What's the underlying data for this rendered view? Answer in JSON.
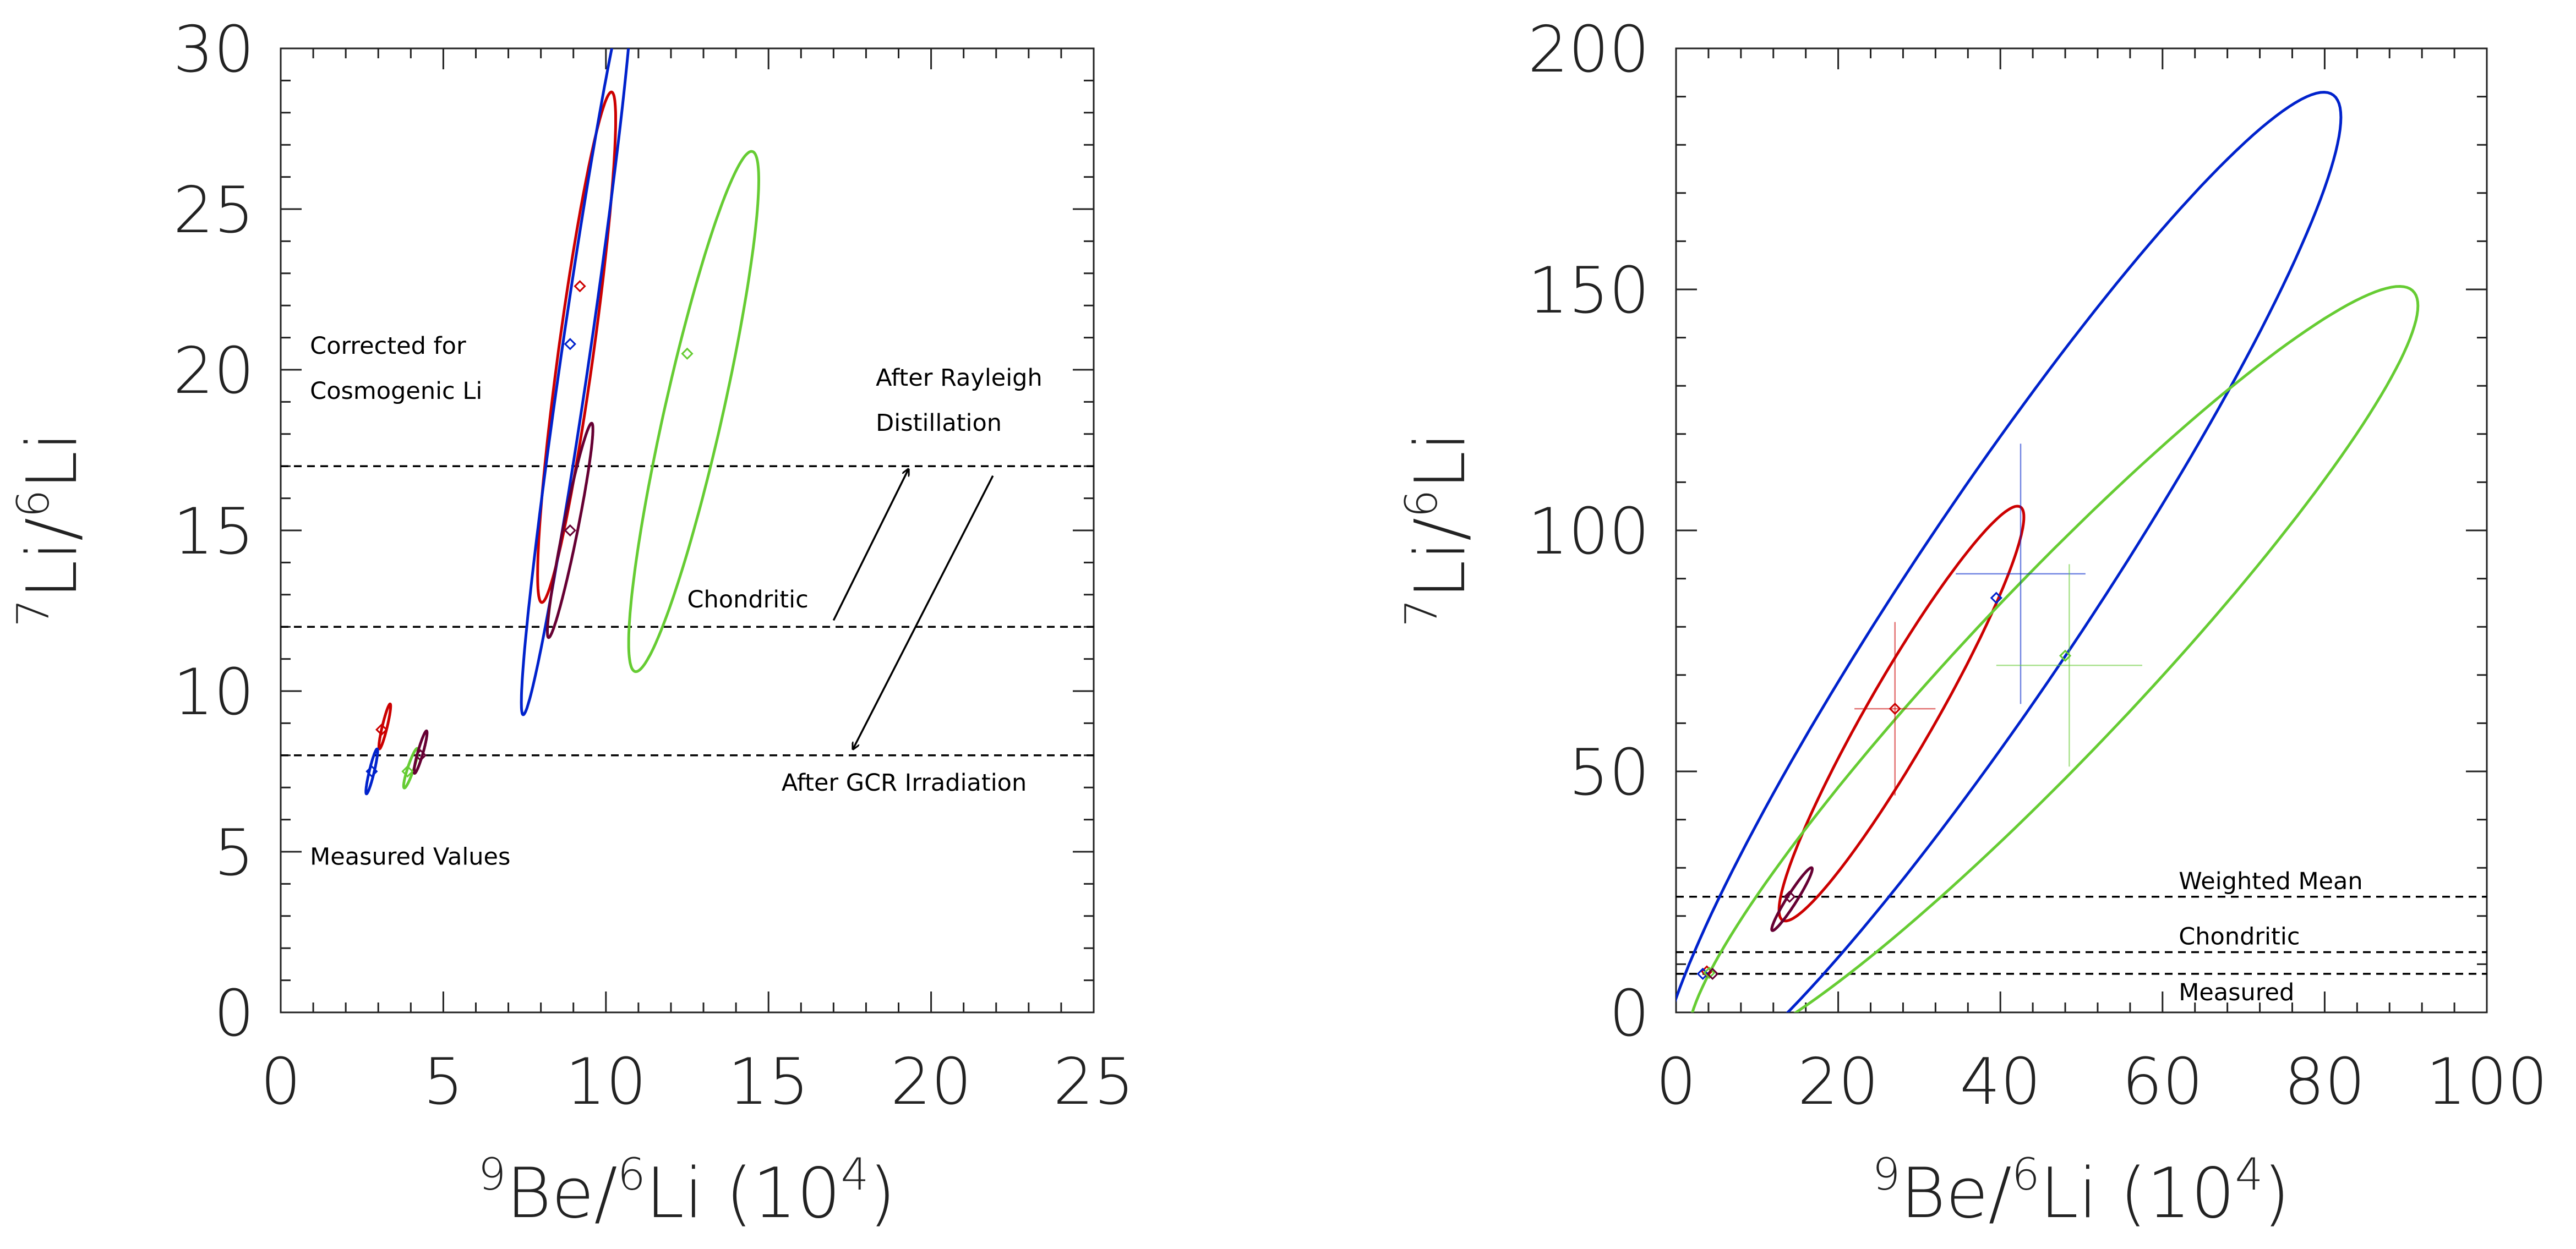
{
  "chart_data": [
    {
      "type": "scatter",
      "panel": "left",
      "xlabel": {
        "sup": "9",
        "main": "Be/",
        "sup2": "6",
        "main2": "Li (10",
        "sup3": "4",
        "main3": ")"
      },
      "ylabel": {
        "sup": "7",
        "main": "Li/",
        "sup2": "6",
        "main2": "Li"
      },
      "xlim": [
        0,
        25
      ],
      "ylim": [
        0,
        30
      ],
      "xticks": [
        0,
        5,
        10,
        15,
        20,
        25
      ],
      "yticks": [
        0,
        5,
        10,
        15,
        20,
        25,
        30
      ],
      "xminor": 1,
      "yminor": 1,
      "hlines": [
        {
          "y": 17,
          "style": "dashed"
        },
        {
          "y": 12,
          "style": "dashed"
        },
        {
          "y": 8,
          "style": "dashed"
        }
      ],
      "series": [
        {
          "color": "#cc0000",
          "points": [
            {
              "x": 3.1,
              "y": 8.8
            },
            {
              "x": 9.2,
              "y": 22.6
            }
          ],
          "ellipses": [
            {
              "cx": 3.2,
              "cy": 8.9,
              "x_extent": 0.18,
              "y_extent": 0.6,
              "slope": 3.5
            },
            {
              "cx": 9.1,
              "cy": 20.7,
              "x_extent": 1.2,
              "y_extent": 7.2,
              "slope": 5.9
            }
          ]
        },
        {
          "color": "#0022cc",
          "points": [
            {
              "x": 2.8,
              "y": 7.5
            },
            {
              "x": 8.9,
              "y": 20.8
            }
          ],
          "ellipses": [
            {
              "cx": 2.8,
              "cy": 7.5,
              "x_extent": 0.18,
              "y_extent": 0.6,
              "slope": 3.5
            },
            {
              "cx": 9.1,
              "cy": 20.7,
              "x_extent": 1.7,
              "y_extent": 5.9,
              "slope": 6.5
            }
          ]
        },
        {
          "color": "#66cc33",
          "points": [
            {
              "x": 12.5,
              "y": 20.5
            },
            {
              "x": 3.9,
              "y": 7.5
            }
          ],
          "ellipses": [
            {
              "cx": 12.7,
              "cy": 18.7,
              "x_extent": 2.0,
              "y_extent": 7.4,
              "slope": 3.6
            },
            {
              "cx": 4.0,
              "cy": 7.6,
              "x_extent": 0.22,
              "y_extent": 0.55,
              "slope": 2.5
            }
          ]
        },
        {
          "color": "#660033",
          "points": [
            {
              "x": 8.9,
              "y": 15.0
            },
            {
              "x": 4.3,
              "y": 8.0
            }
          ],
          "ellipses": [
            {
              "cx": 8.9,
              "cy": 15.0,
              "x_extent": 0.7,
              "y_extent": 2.2,
              "slope": 4.5
            },
            {
              "cx": 4.3,
              "cy": 8.1,
              "x_extent": 0.2,
              "y_extent": 0.55,
              "slope": 3.0
            }
          ]
        }
      ],
      "annotations": [
        {
          "lines": [
            "Corrected for",
            "Cosmogenic Li"
          ],
          "x": 0.9,
          "y": 20.5
        },
        {
          "lines": [
            "After Rayleigh",
            "Distillation"
          ],
          "x": 18.3,
          "y": 19.5
        },
        {
          "lines": [
            "Chondritic"
          ],
          "x": 12.5,
          "y": 12.6
        },
        {
          "lines": [
            "After GCR Irradiation"
          ],
          "x": 15.4,
          "y": 6.9
        },
        {
          "lines": [
            "Measured Values"
          ],
          "x": 0.9,
          "y": 4.6
        }
      ],
      "arrows": [
        {
          "from": [
            17.0,
            12.2
          ],
          "to": [
            19.3,
            16.9
          ]
        },
        {
          "from": [
            21.9,
            16.7
          ],
          "to": [
            17.6,
            8.2
          ]
        }
      ]
    },
    {
      "type": "scatter",
      "panel": "right",
      "xlabel": {
        "sup": "9",
        "main": "Be/",
        "sup2": "6",
        "main2": "Li (10",
        "sup3": "4",
        "main3": ")"
      },
      "ylabel": {
        "sup": "7",
        "main": "Li/",
        "sup2": "6",
        "main2": "Li"
      },
      "xlim": [
        0,
        100
      ],
      "ylim": [
        0,
        200
      ],
      "xticks": [
        0,
        20,
        40,
        60,
        80,
        100
      ],
      "yticks": [
        0,
        50,
        100,
        150,
        200
      ],
      "xminor": 4,
      "yminor": 10,
      "hlines": [
        {
          "y": 24,
          "style": "dashed",
          "label": "Weighted Mean"
        },
        {
          "y": 12.5,
          "style": "dashed",
          "label": "Chondritic"
        },
        {
          "y": 8,
          "style": "dashed",
          "label": "Measured"
        }
      ],
      "series": [
        {
          "color": "#cc0000",
          "points": [
            {
              "x": 27,
              "y": 63
            },
            {
              "x": 3.8,
              "y": 8.5
            }
          ],
          "errorbars": [
            {
              "x": 27,
              "y": 63,
              "xerr": 5,
              "yerr": 18
            }
          ],
          "ellipses": [
            {
              "cx": 27.8,
              "cy": 62,
              "x_extent": 15.1,
              "y_extent": 44,
              "slope": 2.7
            }
          ]
        },
        {
          "color": "#0022cc",
          "points": [
            {
              "x": 39.5,
              "y": 86
            },
            {
              "x": 3.3,
              "y": 8
            }
          ],
          "errorbars": [
            {
              "x": 42.5,
              "y": 91,
              "xerr": 8,
              "yerr": 27
            }
          ],
          "ellipses": [
            {
              "cx": 40,
              "cy": 87,
              "x_extent": 42,
              "y_extent": 104,
              "slope": 2.35
            }
          ]
        },
        {
          "color": "#66cc33",
          "points": [
            {
              "x": 48,
              "y": 74
            },
            {
              "x": 4.1,
              "y": 8.2
            }
          ],
          "errorbars": [
            {
              "x": 48.5,
              "y": 72,
              "xerr": 9,
              "yerr": 21
            }
          ],
          "ellipses": [
            {
              "cx": 46.5,
              "cy": 71,
              "x_extent": 45,
              "y_extent": 80,
              "slope": 1.68
            }
          ]
        },
        {
          "color": "#660033",
          "points": [
            {
              "x": 14,
              "y": 24
            },
            {
              "x": 4.5,
              "y": 8
            }
          ],
          "ellipses": [
            {
              "cx": 14.3,
              "cy": 23.5,
              "x_extent": 2.5,
              "y_extent": 6,
              "slope": 2.5
            }
          ]
        }
      ]
    }
  ]
}
